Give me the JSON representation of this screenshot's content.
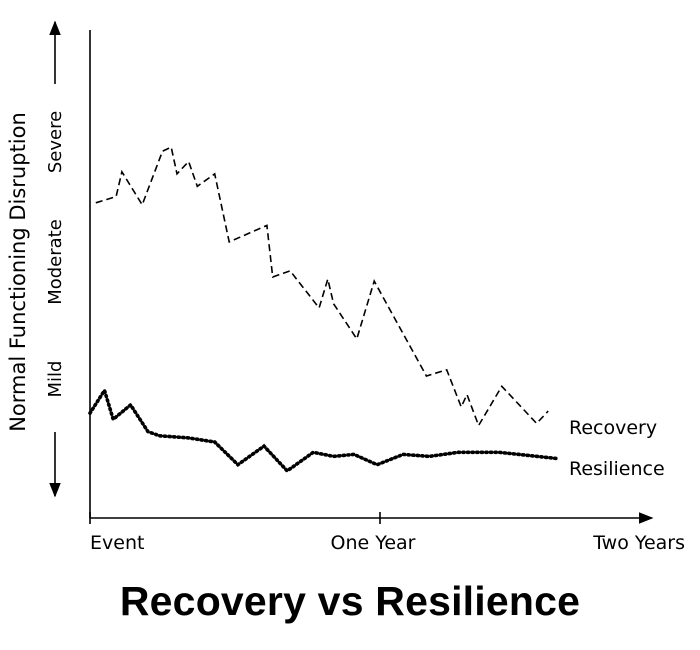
{
  "chart_data": {
    "type": "line",
    "title": "Recovery vs Resilience",
    "ylabel": "Normal Functioning Disruption",
    "y_levels": [
      "Mild",
      "Moderate",
      "Severe"
    ],
    "ylim": [
      0,
      10
    ],
    "xlim": [
      0,
      2
    ],
    "x_ticks": [
      {
        "value": 0,
        "label": "Event"
      },
      {
        "value": 1,
        "label": "One Year"
      },
      {
        "value": 2,
        "label": "Two Years"
      }
    ],
    "grid": false,
    "legend": "inline-right",
    "series": [
      {
        "name": "Recovery",
        "style": "dashed",
        "x": [
          0.02,
          0.09,
          0.11,
          0.18,
          0.25,
          0.28,
          0.3,
          0.34,
          0.37,
          0.43,
          0.48,
          0.61,
          0.63,
          0.69,
          0.79,
          0.82,
          0.84,
          0.92,
          0.98,
          1.16,
          1.23,
          1.28,
          1.3,
          1.34,
          1.42,
          1.54,
          1.58
        ],
        "y": [
          6.6,
          6.75,
          7.35,
          6.55,
          7.85,
          7.95,
          7.3,
          7.6,
          7.0,
          7.3,
          5.65,
          6.05,
          4.8,
          4.95,
          4.05,
          4.75,
          4.15,
          3.3,
          4.7,
          2.4,
          2.55,
          1.65,
          1.95,
          1.2,
          2.15,
          1.25,
          1.55
        ]
      },
      {
        "name": "Resilience",
        "style": "dotted",
        "x": [
          0.0,
          0.05,
          0.08,
          0.14,
          0.2,
          0.24,
          0.34,
          0.43,
          0.51,
          0.6,
          0.68,
          0.77,
          0.84,
          0.91,
          0.99,
          1.08,
          1.17,
          1.27,
          1.41,
          1.61
        ],
        "y": [
          1.5,
          2.05,
          1.35,
          1.7,
          1.05,
          0.95,
          0.9,
          0.8,
          0.25,
          0.7,
          0.1,
          0.55,
          0.45,
          0.5,
          0.25,
          0.5,
          0.45,
          0.55,
          0.55,
          0.4
        ]
      }
    ]
  }
}
